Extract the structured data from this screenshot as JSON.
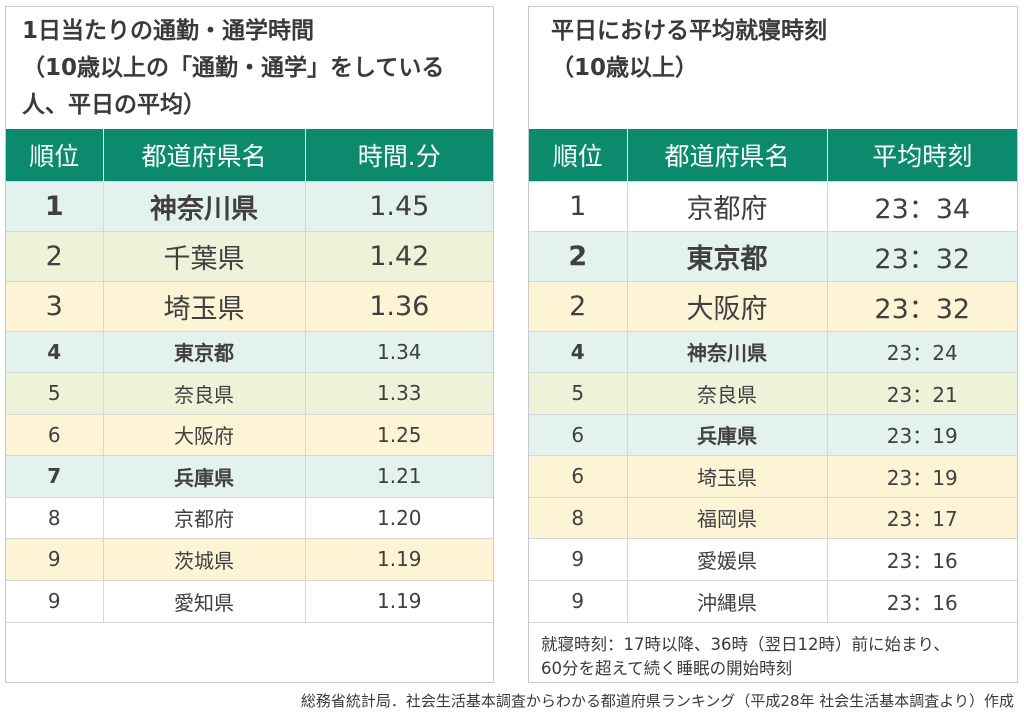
{
  "left": {
    "title": "1日当たりの通勤・通学時間\n（10歳以上の「通勤・通学」をしている人、平日の平均）",
    "headers": [
      "順位",
      "都道府県名",
      "時間.分"
    ],
    "rows": [
      {
        "rank": "1",
        "pref": "神奈川県",
        "value": "1.45"
      },
      {
        "rank": "2",
        "pref": "千葉県",
        "value": "1.42"
      },
      {
        "rank": "3",
        "pref": "埼玉県",
        "value": "1.36"
      },
      {
        "rank": "4",
        "pref": "東京都",
        "value": "1.34"
      },
      {
        "rank": "5",
        "pref": "奈良県",
        "value": "1.33"
      },
      {
        "rank": "6",
        "pref": "大阪府",
        "value": "1.25"
      },
      {
        "rank": "7",
        "pref": "兵庫県",
        "value": "1.21"
      },
      {
        "rank": "8",
        "pref": "京都府",
        "value": "1.20"
      },
      {
        "rank": "9",
        "pref": "茨城県",
        "value": "1.19"
      },
      {
        "rank": "9",
        "pref": "愛知県",
        "value": "1.19"
      }
    ]
  },
  "right": {
    "title": "平日における平均就寝時刻\n（10歳以上）",
    "headers": [
      "順位",
      "都道府県名",
      "平均時刻"
    ],
    "rows": [
      {
        "rank": "1",
        "pref": "京都府",
        "value": "23：34"
      },
      {
        "rank": "2",
        "pref": "東京都",
        "value": "23：32"
      },
      {
        "rank": "2",
        "pref": "大阪府",
        "value": "23：32"
      },
      {
        "rank": "4",
        "pref": "神奈川県",
        "value": "23：24"
      },
      {
        "rank": "5",
        "pref": "奈良県",
        "value": "23：21"
      },
      {
        "rank": "6",
        "pref": "兵庫県",
        "value": "23：19"
      },
      {
        "rank": "6",
        "pref": "埼玉県",
        "value": "23：19"
      },
      {
        "rank": "8",
        "pref": "福岡県",
        "value": "23：17"
      },
      {
        "rank": "9",
        "pref": "愛媛県",
        "value": "23：16"
      },
      {
        "rank": "9",
        "pref": "沖縄県",
        "value": "23：16"
      }
    ],
    "note": "就寝時刻：17時以降、36時（翌日12時）前に始まり、\n60分を超えて続く睡眠の開始時刻"
  },
  "source": "総務省統計局．社会生活基本調査からわかる都道府県ランキング（平成28年 社会生活基本調査より）作成"
}
